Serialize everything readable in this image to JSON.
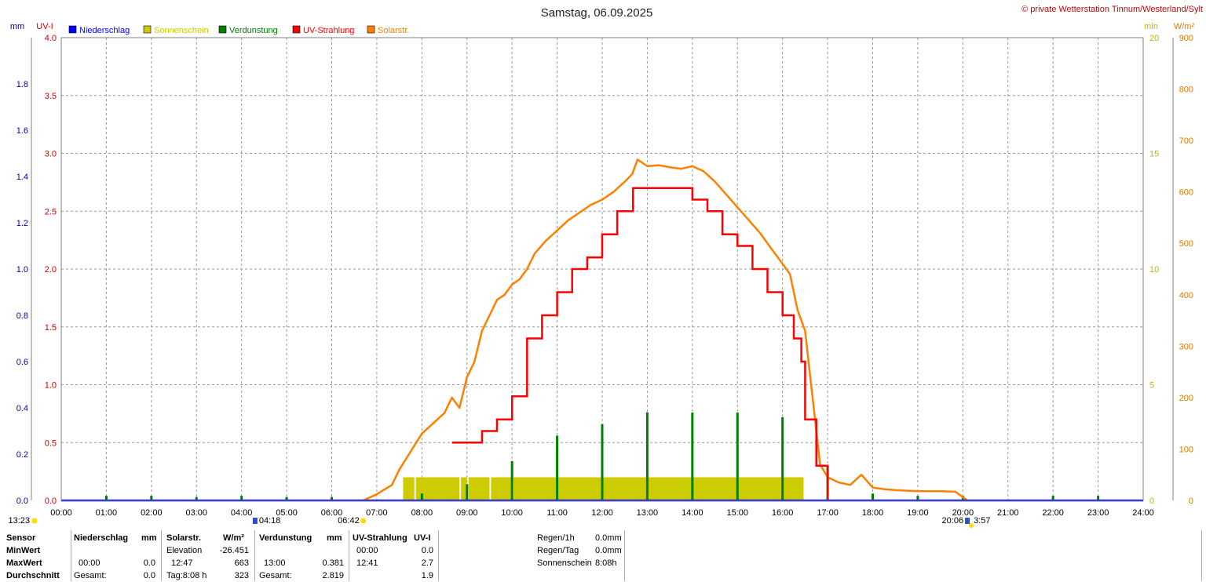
{
  "header": {
    "title": "Samstag, 06.09.2025",
    "credit": "© private Wetterstation Tinnum/Westerland/Sylt"
  },
  "axes": {
    "left_outer_unit": "mm",
    "left_inner_unit": "UV-I",
    "right_inner_unit": "min",
    "right_outer_unit": "W/m²",
    "left_outer_ticks": [
      "1.8",
      "1.6",
      "1.4",
      "1.2",
      "1.0",
      "0.8",
      "0.6",
      "0.4",
      "0.2",
      "0.0"
    ],
    "left_inner_ticks": [
      "4.0",
      "3.5",
      "3.0",
      "2.5",
      "2.0",
      "1.5",
      "1.0",
      "0.5",
      "0.0"
    ],
    "right_inner_ticks": [
      "20",
      "15",
      "10",
      "5",
      "0"
    ],
    "right_outer_ticks": [
      "900",
      "800",
      "700",
      "600",
      "500",
      "400",
      "300",
      "200",
      "100",
      "0"
    ],
    "x_ticks": [
      "00:00",
      "01:00",
      "02:00",
      "03:00",
      "04:00",
      "05:00",
      "06:00",
      "07:00",
      "08:00",
      "09:00",
      "10:00",
      "11:00",
      "12:00",
      "13:00",
      "14:00",
      "15:00",
      "16:00",
      "17:00",
      "18:00",
      "19:00",
      "20:00",
      "21:00",
      "22:00",
      "23:00",
      "24:00"
    ]
  },
  "markers": {
    "moonset": "13:23",
    "moonrise_a": "04:18",
    "sunrise": "06:42",
    "sunset": "20:06",
    "moon_b": "3:57"
  },
  "legend": [
    {
      "label": "Niederschlag",
      "color": "#0000ff"
    },
    {
      "label": "Sonnenschein",
      "color": "#cccc00"
    },
    {
      "label": "Verdunstung",
      "color": "#008000"
    },
    {
      "label": "UV-Strahlung",
      "color": "#ff0000"
    },
    {
      "label": "Solarstr.",
      "color": "#ff8000"
    }
  ],
  "colors": {
    "precip": "#0000ff",
    "sunshine": "#cccc00",
    "evaporation": "#008000",
    "uv": "#ff0000",
    "solar": "#ff8000",
    "uv_axis": "#cc0000",
    "sun_axis": "#c8b400",
    "solar_axis": "#e07800",
    "grid": "#999999"
  },
  "chart_data": {
    "type": "line",
    "title": "Samstag, 06.09.2025",
    "x_range": [
      "00:00",
      "24:00"
    ],
    "axes_ranges": {
      "precip_mm": [
        0,
        2.0
      ],
      "uv_index": [
        0,
        4.0
      ],
      "sunshine_min": [
        0,
        20
      ],
      "solar_wm2": [
        0,
        900
      ]
    },
    "grid": true,
    "legend_position": "top-left",
    "series": [
      {
        "name": "Solarstr.",
        "unit": "W/m²",
        "x": [
          "06:42",
          "07:00",
          "07:20",
          "07:30",
          "07:45",
          "08:00",
          "08:15",
          "08:30",
          "08:40",
          "08:50",
          "09:00",
          "09:10",
          "09:20",
          "09:30",
          "09:40",
          "09:50",
          "10:00",
          "10:10",
          "10:20",
          "10:30",
          "10:45",
          "11:00",
          "11:15",
          "11:30",
          "11:45",
          "12:00",
          "12:15",
          "12:30",
          "12:40",
          "12:47",
          "13:00",
          "13:15",
          "13:30",
          "13:45",
          "14:00",
          "14:15",
          "14:30",
          "14:45",
          "15:00",
          "15:15",
          "15:30",
          "15:45",
          "16:00",
          "16:10",
          "16:20",
          "16:30",
          "16:40",
          "16:50",
          "17:00",
          "17:15",
          "17:30",
          "17:45",
          "18:00",
          "18:15",
          "18:30",
          "19:00",
          "19:30",
          "19:50",
          "20:06"
        ],
        "values": [
          0,
          12,
          30,
          60,
          95,
          130,
          150,
          170,
          200,
          180,
          240,
          270,
          330,
          360,
          390,
          400,
          420,
          430,
          450,
          480,
          505,
          525,
          545,
          560,
          575,
          585,
          600,
          620,
          635,
          663,
          650,
          652,
          648,
          645,
          650,
          640,
          620,
          595,
          570,
          545,
          520,
          490,
          460,
          440,
          370,
          330,
          200,
          70,
          45,
          35,
          30,
          50,
          25,
          22,
          20,
          18,
          18,
          17,
          0
        ]
      },
      {
        "name": "UV-Strahlung",
        "unit": "UV-I",
        "x": [
          "08:40",
          "09:00",
          "09:20",
          "09:40",
          "10:00",
          "10:20",
          "10:40",
          "11:00",
          "11:20",
          "11:40",
          "12:00",
          "12:20",
          "12:41",
          "13:00",
          "13:30",
          "14:00",
          "14:20",
          "14:40",
          "15:00",
          "15:20",
          "15:40",
          "16:00",
          "16:15",
          "16:25",
          "16:30",
          "16:45",
          "17:00"
        ],
        "values": [
          0.5,
          0.5,
          0.6,
          0.7,
          0.9,
          1.4,
          1.6,
          1.8,
          2.0,
          2.1,
          2.3,
          2.5,
          2.7,
          2.7,
          2.7,
          2.6,
          2.5,
          2.3,
          2.2,
          2.0,
          1.8,
          1.6,
          1.4,
          1.2,
          0.7,
          0.3,
          0.0
        ]
      },
      {
        "name": "Verdunstung",
        "unit": "mm",
        "x": [
          "01:00",
          "02:00",
          "03:00",
          "04:00",
          "05:00",
          "06:00",
          "08:00",
          "09:00",
          "10:00",
          "11:00",
          "12:00",
          "13:00",
          "14:00",
          "15:00",
          "16:00",
          "17:00",
          "18:00",
          "19:00",
          "20:00",
          "22:00",
          "23:00"
        ],
        "values": [
          0.02,
          0.02,
          0.015,
          0.02,
          0.015,
          0.015,
          0.03,
          0.07,
          0.17,
          0.28,
          0.33,
          0.381,
          0.38,
          0.38,
          0.36,
          0.15,
          0.03,
          0.02,
          0.02,
          0.02,
          0.02
        ]
      },
      {
        "name": "Sonnenschein",
        "unit": "min",
        "x": [
          "07:35",
          "07:50",
          "08:50",
          "09:00",
          "09:30",
          "10:00",
          "11:00",
          "12:00",
          "13:00",
          "14:00",
          "15:00",
          "16:00",
          "16:28"
        ],
        "values": [
          1,
          1,
          1,
          1,
          1,
          1,
          1,
          1,
          1,
          1,
          1,
          1,
          1
        ]
      },
      {
        "name": "Niederschlag",
        "unit": "mm",
        "x": [
          "00:00",
          "24:00"
        ],
        "values": [
          0.0,
          0.0
        ]
      }
    ]
  },
  "stats": {
    "headers": {
      "sensor": "Sensor",
      "precip": "Niederschlag",
      "precip_unit": "mm",
      "solar": "Solarstr.",
      "solar_unit": "W/m²",
      "evap": "Verdunstung",
      "evap_unit": "mm",
      "uv": "UV-Strahlung",
      "uv_unit": "UV-I"
    },
    "minwert": {
      "label": "MinWert",
      "solar_label": "Elevation",
      "solar_value": "-26.451",
      "uv_time": "00:00",
      "uv_value": "0.0"
    },
    "maxwert": {
      "label": "MaxWert",
      "precip_time": "00:00",
      "precip_value": "0.0",
      "solar_time": "12:47",
      "solar_value": "663",
      "evap_time": "13:00",
      "evap_value": "0.381",
      "uv_time": "12:41",
      "uv_value": "2.7"
    },
    "durchschnitt": {
      "label": "Durchschnitt",
      "precip_label": "Gesamt:",
      "precip_value": "0.0",
      "solar_label": "Tag:8:08 h",
      "solar_value": "323",
      "evap_label": "Gesamt:",
      "evap_value": "2.819",
      "uv_value": "1.9"
    },
    "side": [
      {
        "label": "Regen/1h",
        "value": "0.0mm"
      },
      {
        "label": "Regen/Tag",
        "value": "0.0mm"
      },
      {
        "label": "Sonnenschein",
        "value": "8:08h"
      }
    ]
  }
}
